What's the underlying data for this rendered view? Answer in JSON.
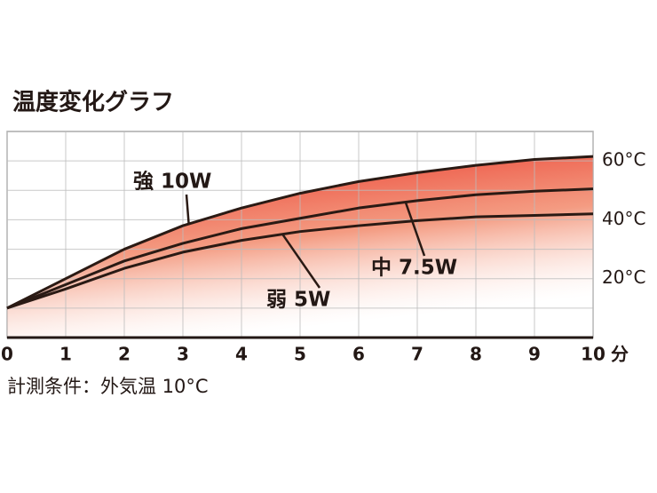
{
  "chart_data": {
    "type": "line",
    "title": "温度変化グラフ",
    "note": "計測条件：外気温 10°C",
    "x": [
      0,
      1,
      2,
      3,
      4,
      5,
      6,
      7,
      8,
      9,
      10
    ],
    "x_unit": "分",
    "series": [
      {
        "name": "強 10W",
        "color": "#2a1a14",
        "values": [
          10,
          20,
          30,
          38,
          44,
          49,
          53,
          56,
          58.5,
          60.5,
          61.5
        ]
      },
      {
        "name": "中 7.5W",
        "color": "#2a1a14",
        "values": [
          10,
          18,
          26,
          32,
          37,
          40.5,
          44,
          46.5,
          48.5,
          49.7,
          50.5
        ]
      },
      {
        "name": "弱 5W",
        "color": "#2a1a14",
        "values": [
          10,
          16.5,
          23.5,
          29,
          33,
          36,
          38,
          39.7,
          41,
          41.5,
          42
        ]
      }
    ],
    "area_color": "#e8261c",
    "xlim": [
      0,
      10
    ],
    "xticks": [
      0,
      1,
      2,
      3,
      4,
      5,
      6,
      7,
      8,
      9,
      10
    ],
    "ylim": [
      0,
      70
    ],
    "yticks": [
      {
        "value": 20,
        "label": "20°C"
      },
      {
        "value": 40,
        "label": "40°C"
      },
      {
        "value": 60,
        "label": "60°C"
      }
    ],
    "minor_yticks": [
      10,
      30,
      50
    ],
    "grid": true
  }
}
